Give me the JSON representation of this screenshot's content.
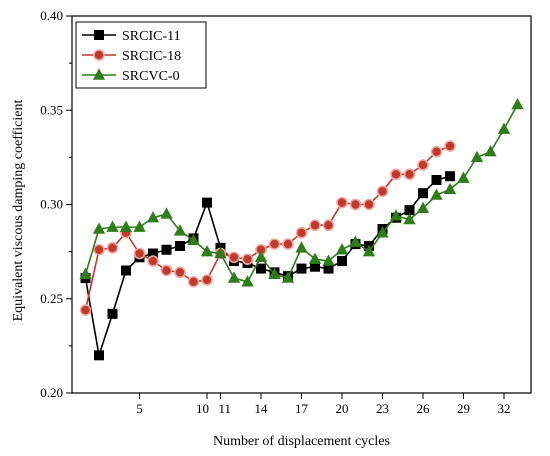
{
  "chart_data": {
    "type": "line",
    "xlabel": "Number of displacement cycles",
    "ylabel": "Equivalent viscous damping coefficient",
    "xlim": [
      0,
      34
    ],
    "ylim": [
      0.2,
      0.4
    ],
    "x_ticks": [
      5,
      10,
      11,
      14,
      17,
      20,
      23,
      26,
      29,
      32
    ],
    "x_tick_labels": [
      "5",
      "10",
      "11",
      "14",
      "17",
      "20",
      "23",
      "26",
      "29",
      "32"
    ],
    "y_ticks": [
      0.2,
      0.25,
      0.3,
      0.35,
      0.4
    ],
    "y_tick_labels": [
      "0.20",
      "0.25",
      "0.30",
      "0.35",
      "0.40"
    ],
    "legend_position": "top-left",
    "grid": false,
    "series": [
      {
        "name": "SRCIC-11",
        "color": "#000000",
        "marker": "square",
        "x": [
          1,
          2,
          3,
          4,
          5,
          6,
          7,
          8,
          9,
          10,
          11,
          12,
          13,
          14,
          15,
          16,
          17,
          18,
          19,
          20,
          21,
          22,
          23,
          24,
          25,
          26,
          27,
          28
        ],
        "y": [
          0.261,
          0.22,
          0.242,
          0.265,
          0.272,
          0.274,
          0.276,
          0.278,
          0.282,
          0.301,
          0.277,
          0.27,
          0.269,
          0.266,
          0.264,
          0.262,
          0.266,
          0.267,
          0.266,
          0.27,
          0.279,
          0.278,
          0.287,
          0.293,
          0.297,
          0.306,
          0.313,
          0.315
        ]
      },
      {
        "name": "SRCIC-18",
        "color": "#c0392b",
        "marker": "circle",
        "x": [
          1,
          2,
          3,
          4,
          5,
          6,
          7,
          8,
          9,
          10,
          11,
          12,
          13,
          14,
          15,
          16,
          17,
          18,
          19,
          20,
          21,
          22,
          23,
          24,
          25,
          26,
          27,
          28
        ],
        "y": [
          0.244,
          0.276,
          0.277,
          0.285,
          0.274,
          0.27,
          0.265,
          0.264,
          0.259,
          0.26,
          0.274,
          0.272,
          0.271,
          0.276,
          0.279,
          0.279,
          0.285,
          0.289,
          0.289,
          0.301,
          0.3,
          0.3,
          0.307,
          0.316,
          0.316,
          0.321,
          0.328,
          0.331
        ]
      },
      {
        "name": "SRCVC-0",
        "color": "#2e7d1a",
        "marker": "triangle",
        "x": [
          1,
          2,
          3,
          4,
          5,
          6,
          7,
          8,
          9,
          10,
          11,
          12,
          13,
          14,
          15,
          16,
          17,
          18,
          19,
          20,
          21,
          22,
          23,
          24,
          25,
          26,
          27,
          28,
          29,
          30,
          31,
          32,
          33
        ],
        "y": [
          0.263,
          0.287,
          0.288,
          0.288,
          0.288,
          0.293,
          0.295,
          0.286,
          0.281,
          0.275,
          0.274,
          0.261,
          0.259,
          0.272,
          0.263,
          0.261,
          0.277,
          0.271,
          0.27,
          0.276,
          0.28,
          0.275,
          0.285,
          0.294,
          0.292,
          0.298,
          0.305,
          0.308,
          0.314,
          0.325,
          0.328,
          0.34,
          0.353
        ]
      }
    ]
  }
}
